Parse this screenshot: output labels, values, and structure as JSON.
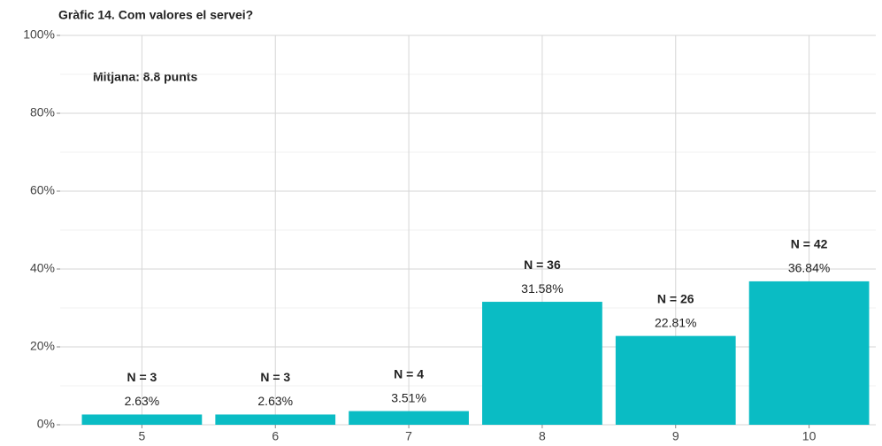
{
  "chart_data": {
    "type": "bar",
    "title": "Gràfic 14. Com valores el servei?",
    "annotation": "Mitjana: 8.8 punts",
    "categories": [
      "5",
      "6",
      "7",
      "8",
      "9",
      "10"
    ],
    "values": [
      2.63,
      2.63,
      3.51,
      31.58,
      22.81,
      36.84
    ],
    "value_labels": [
      "2.63%",
      "2.63%",
      "3.51%",
      "31.58%",
      "22.81%",
      "36.84%"
    ],
    "n_labels": [
      "N = 3",
      "N = 3",
      "N = 4",
      "N = 36",
      "N = 26",
      "N = 42"
    ],
    "color": "#0abcc4",
    "ylim": [
      0,
      100
    ],
    "yticks": [
      {
        "value": 0,
        "label": "0%"
      },
      {
        "value": 20,
        "label": "20%"
      },
      {
        "value": 40,
        "label": "40%"
      },
      {
        "value": 60,
        "label": "60%"
      },
      {
        "value": 80,
        "label": "80%"
      },
      {
        "value": 100,
        "label": "100%"
      }
    ],
    "minor_yticks": [
      10,
      30,
      50,
      70,
      90
    ],
    "grid": true
  }
}
